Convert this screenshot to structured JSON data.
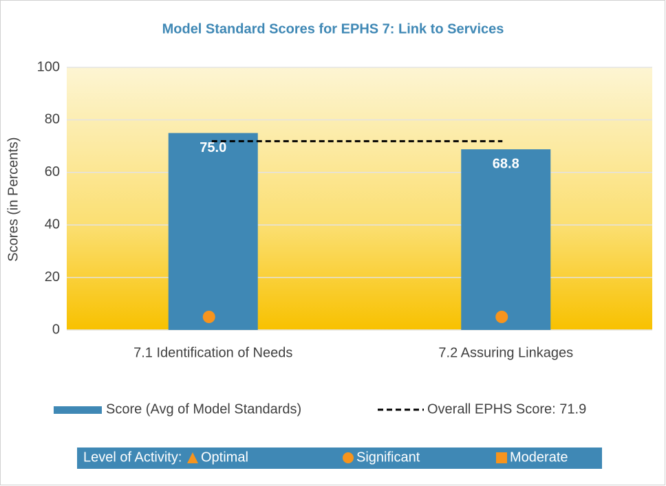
{
  "chart_data": {
    "type": "bar",
    "title": "Model Standard Scores for EPHS 7: Link to Services",
    "y_label": "Scores (in Percents)",
    "categories": [
      "7.1 Identification of Needs",
      "7.2 Assuring Linkages"
    ],
    "series": [
      {
        "name": "Score (Avg of Model Standards)",
        "color": "#3f88b5",
        "values": [
          75.0,
          68.8
        ],
        "value_labels": [
          "75.0",
          "68.8"
        ]
      }
    ],
    "reference_line": {
      "name": "Overall EPHS Score: 71.9",
      "value": 71.9,
      "color": "#000000",
      "style": "dashed"
    },
    "ylim": [
      0,
      100
    ],
    "yticks": [
      0,
      20,
      40,
      60,
      80,
      100
    ],
    "grid": true,
    "activity": [
      "Significant",
      "Significant"
    ],
    "activity_legend": {
      "title": "Level of Activity:",
      "color": "#f7941d",
      "items": [
        {
          "label": "Optimal",
          "shape": "triangle"
        },
        {
          "label": "Significant",
          "shape": "circle"
        },
        {
          "label": "Moderate",
          "shape": "square"
        }
      ]
    }
  }
}
